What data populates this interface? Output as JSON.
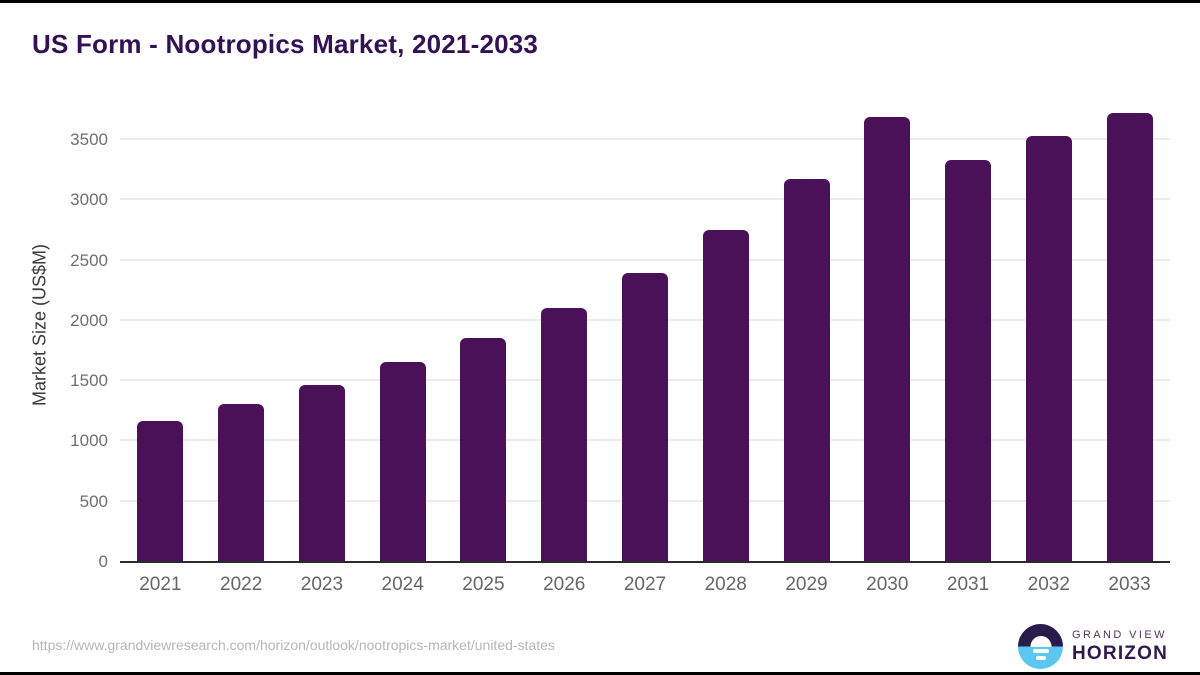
{
  "chart_data": {
    "type": "bar",
    "title": "US Form - Nootropics Market, 2021-2033",
    "categories": [
      "2021",
      "2022",
      "2023",
      "2024",
      "2025",
      "2026",
      "2027",
      "2028",
      "2029",
      "2030",
      "2031",
      "2032",
      "2033"
    ],
    "values": [
      1170,
      1310,
      1465,
      1655,
      1860,
      2110,
      2400,
      2755,
      3180,
      3690,
      3335,
      3530,
      3720
    ],
    "xlabel": "",
    "ylabel": "Market Size (US$M)",
    "ylim": [
      0,
      3800
    ],
    "yticks": [
      0,
      500,
      1000,
      1500,
      2000,
      2500,
      3000,
      3500
    ],
    "grid": "horizontal",
    "legend": "none",
    "bar_color": "#4a1158"
  },
  "footer": {
    "source_url": "https://www.grandviewresearch.com/horizon/outlook/nootropics-market/united-states",
    "logo": {
      "line1": "GRAND VIEW",
      "line2": "HORIZON",
      "icon": "sunrise-over-water"
    }
  },
  "colors": {
    "title": "#331154",
    "bar": "#4a1158",
    "gridline": "#ececec",
    "axis_line": "#2b2b2b",
    "tick_label": "#6f6f6f",
    "source_text": "#b6b6b6",
    "logo_blue": "#5bc6f0",
    "logo_navy": "#2a1b4d"
  }
}
